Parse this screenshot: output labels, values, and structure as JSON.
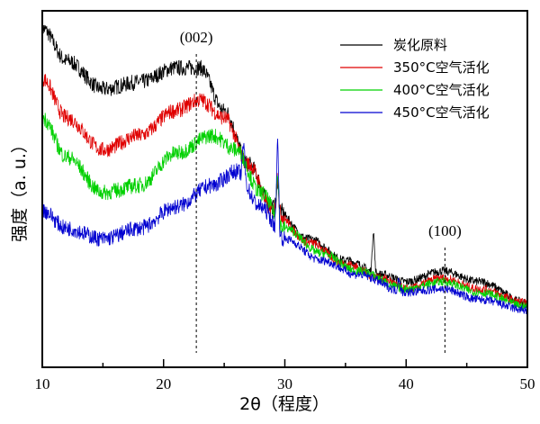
{
  "chart_data": {
    "type": "line",
    "xlabel": "2θ（程度）",
    "ylabel": "强度（a. u.）",
    "xlim": [
      10,
      50
    ],
    "ylim": [
      0,
      100
    ],
    "xticks": [
      10,
      20,
      30,
      40,
      50
    ],
    "y_ticks_shown": false,
    "grid": false,
    "legend_position": "top-right",
    "series": [
      {
        "name": "炭化原料",
        "color": "#000000",
        "x": [
          10,
          12,
          15,
          18,
          21,
          23,
          25,
          27,
          29,
          32,
          35,
          38,
          40,
          43,
          46,
          50
        ],
        "y": [
          95,
          86,
          78,
          80,
          84,
          84,
          72,
          57,
          45,
          36,
          30,
          26,
          24,
          27,
          24,
          18
        ],
        "sharp_peaks": [
          [
            37.3,
            12
          ],
          [
            29.4,
            8
          ]
        ]
      },
      {
        "name": "350°C空气活化",
        "color": "#e00000",
        "x": [
          10,
          12,
          15,
          18,
          21,
          23,
          25,
          27,
          29,
          32,
          35,
          38,
          40,
          43,
          46,
          50
        ],
        "y": [
          81,
          70,
          61,
          65,
          72,
          75,
          70,
          57,
          44,
          35,
          29,
          25,
          22,
          25,
          22,
          18
        ],
        "sharp_peaks": [
          [
            29.4,
            10
          ]
        ]
      },
      {
        "name": "400°C空气活化",
        "color": "#00d000",
        "x": [
          10,
          12,
          15,
          18,
          21,
          24,
          26,
          28,
          30,
          33,
          36,
          40,
          43,
          46,
          50
        ],
        "y": [
          70,
          59,
          49,
          51,
          60,
          65,
          61,
          49,
          39,
          32,
          27,
          22,
          24,
          21,
          17
        ],
        "sharp_peaks": [
          [
            29.4,
            14
          ]
        ]
      },
      {
        "name": "450°C空气活化",
        "color": "#0000d0",
        "x": [
          10,
          12,
          15,
          18,
          21,
          24,
          26,
          28,
          30,
          33,
          36,
          40,
          43,
          46,
          50
        ],
        "y": [
          44,
          39,
          36,
          39,
          45,
          51,
          55,
          45,
          36,
          30,
          26,
          21,
          22,
          19,
          16
        ],
        "sharp_peaks": [
          [
            26.6,
            10
          ],
          [
            29.4,
            25
          ],
          [
            39.4,
            4
          ]
        ]
      }
    ],
    "annotations": [
      {
        "text": "(002)",
        "x": 22.7
      },
      {
        "text": "(100)",
        "x": 43.2
      }
    ]
  }
}
